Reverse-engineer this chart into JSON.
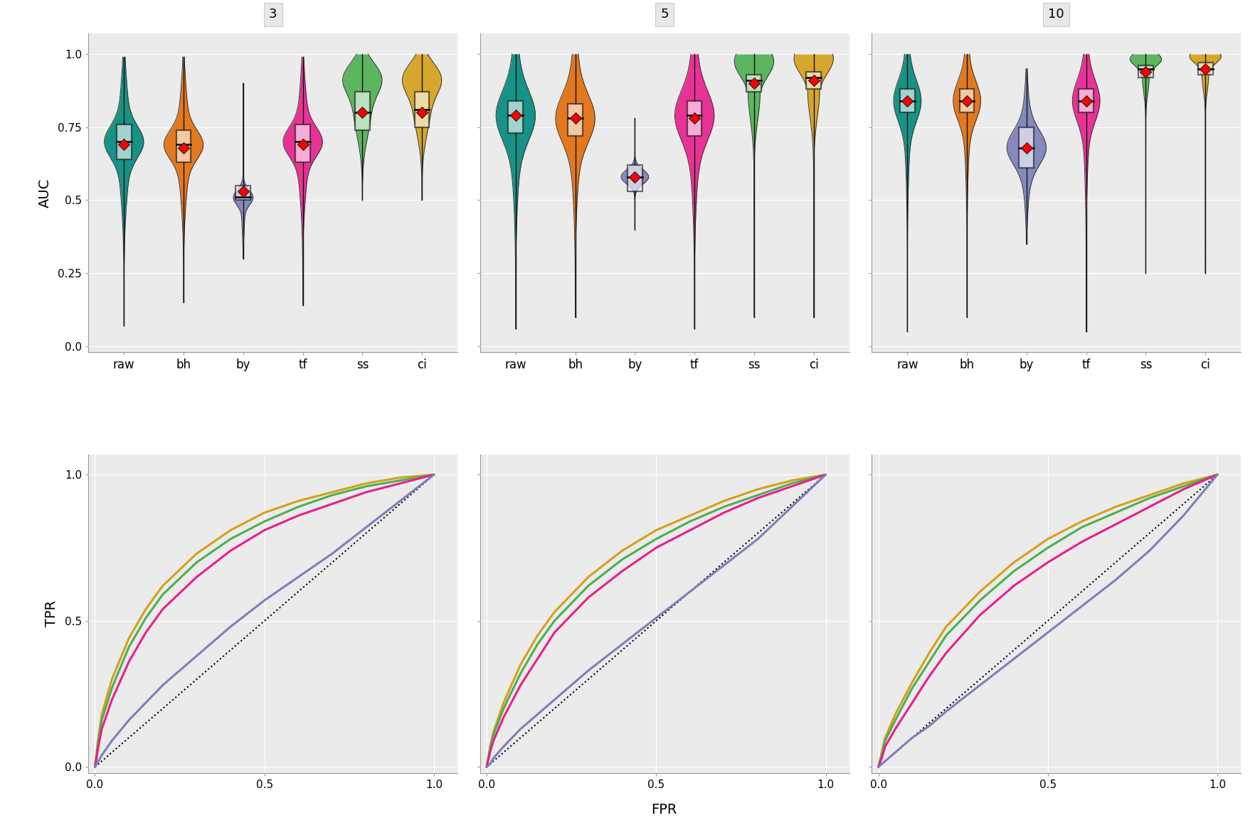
{
  "columns": [
    "3",
    "5",
    "10"
  ],
  "categories": [
    "raw",
    "bh",
    "by",
    "tf",
    "ss",
    "ci"
  ],
  "violin_colors": {
    "raw": "#00897B",
    "bh": "#E36C09",
    "by": "#7B7FBB",
    "tf": "#E91E8C",
    "ss": "#4CAF50",
    "ci": "#D4A017"
  },
  "violin_data": {
    "3": {
      "raw": {
        "mean": 0.69,
        "q1": 0.64,
        "q3": 0.76,
        "median": 0.7,
        "min": 0.07,
        "max": 0.99,
        "shape": "bimodal_narrow"
      },
      "bh": {
        "mean": 0.68,
        "q1": 0.63,
        "q3": 0.74,
        "median": 0.69,
        "min": 0.15,
        "max": 0.99,
        "shape": "bimodal_narrow"
      },
      "by": {
        "mean": 0.53,
        "q1": 0.5,
        "q3": 0.55,
        "median": 0.51,
        "min": 0.3,
        "max": 0.9,
        "shape": "narrow_low"
      },
      "tf": {
        "mean": 0.69,
        "q1": 0.63,
        "q3": 0.76,
        "median": 0.7,
        "min": 0.14,
        "max": 0.99,
        "shape": "bimodal_narrow"
      },
      "ss": {
        "mean": 0.8,
        "q1": 0.74,
        "q3": 0.87,
        "median": 0.8,
        "min": 0.5,
        "max": 1.0,
        "shape": "top_heavy"
      },
      "ci": {
        "mean": 0.8,
        "q1": 0.75,
        "q3": 0.87,
        "median": 0.81,
        "min": 0.5,
        "max": 1.0,
        "shape": "top_heavy"
      }
    },
    "5": {
      "raw": {
        "mean": 0.79,
        "q1": 0.73,
        "q3": 0.84,
        "median": 0.79,
        "min": 0.06,
        "max": 1.0,
        "shape": "diamond"
      },
      "bh": {
        "mean": 0.78,
        "q1": 0.72,
        "q3": 0.83,
        "median": 0.78,
        "min": 0.1,
        "max": 1.0,
        "shape": "diamond"
      },
      "by": {
        "mean": 0.58,
        "q1": 0.53,
        "q3": 0.62,
        "median": 0.58,
        "min": 0.4,
        "max": 0.78,
        "shape": "bell_low"
      },
      "tf": {
        "mean": 0.78,
        "q1": 0.72,
        "q3": 0.84,
        "median": 0.79,
        "min": 0.06,
        "max": 1.0,
        "shape": "diamond"
      },
      "ss": {
        "mean": 0.9,
        "q1": 0.87,
        "q3": 0.93,
        "median": 0.91,
        "min": 0.1,
        "max": 1.0,
        "shape": "top_flat"
      },
      "ci": {
        "mean": 0.91,
        "q1": 0.88,
        "q3": 0.94,
        "median": 0.92,
        "min": 0.1,
        "max": 1.0,
        "shape": "top_flat"
      }
    },
    "10": {
      "raw": {
        "mean": 0.84,
        "q1": 0.8,
        "q3": 0.88,
        "median": 0.84,
        "min": 0.05,
        "max": 1.0,
        "shape": "diamond_narrow"
      },
      "bh": {
        "mean": 0.84,
        "q1": 0.8,
        "q3": 0.88,
        "median": 0.84,
        "min": 0.1,
        "max": 1.0,
        "shape": "diamond_narrow"
      },
      "by": {
        "mean": 0.68,
        "q1": 0.61,
        "q3": 0.75,
        "median": 0.68,
        "min": 0.35,
        "max": 0.95,
        "shape": "elongated"
      },
      "tf": {
        "mean": 0.84,
        "q1": 0.8,
        "q3": 0.88,
        "median": 0.84,
        "min": 0.05,
        "max": 1.0,
        "shape": "diamond_narrow"
      },
      "ss": {
        "mean": 0.94,
        "q1": 0.92,
        "q3": 0.96,
        "median": 0.95,
        "min": 0.25,
        "max": 1.0,
        "shape": "top_flat_narrow"
      },
      "ci": {
        "mean": 0.95,
        "q1": 0.93,
        "q3": 0.97,
        "median": 0.95,
        "min": 0.25,
        "max": 1.0,
        "shape": "top_flat_narrow"
      }
    }
  },
  "roc_curves": {
    "3": {
      "yellow": {
        "fpr": [
          0,
          0.01,
          0.02,
          0.05,
          0.1,
          0.15,
          0.2,
          0.3,
          0.4,
          0.5,
          0.6,
          0.7,
          0.8,
          0.9,
          1.0
        ],
        "tpr": [
          0,
          0.1,
          0.18,
          0.3,
          0.44,
          0.54,
          0.62,
          0.73,
          0.81,
          0.87,
          0.91,
          0.94,
          0.97,
          0.99,
          1.0
        ]
      },
      "green": {
        "fpr": [
          0,
          0.01,
          0.02,
          0.05,
          0.1,
          0.15,
          0.2,
          0.3,
          0.4,
          0.5,
          0.6,
          0.7,
          0.8,
          0.9,
          1.0
        ],
        "tpr": [
          0,
          0.09,
          0.16,
          0.27,
          0.41,
          0.51,
          0.59,
          0.7,
          0.78,
          0.84,
          0.89,
          0.93,
          0.96,
          0.98,
          1.0
        ]
      },
      "magenta": {
        "fpr": [
          0,
          0.01,
          0.02,
          0.05,
          0.1,
          0.15,
          0.2,
          0.3,
          0.4,
          0.5,
          0.6,
          0.7,
          0.8,
          0.9,
          1.0
        ],
        "tpr": [
          0,
          0.07,
          0.13,
          0.23,
          0.36,
          0.46,
          0.54,
          0.65,
          0.74,
          0.81,
          0.86,
          0.9,
          0.94,
          0.97,
          1.0
        ]
      },
      "purple": {
        "fpr": [
          0,
          0.01,
          0.02,
          0.05,
          0.1,
          0.15,
          0.2,
          0.3,
          0.4,
          0.5,
          0.6,
          0.7,
          0.8,
          0.9,
          1.0
        ],
        "tpr": [
          0,
          0.02,
          0.04,
          0.09,
          0.16,
          0.22,
          0.28,
          0.38,
          0.48,
          0.57,
          0.65,
          0.73,
          0.82,
          0.91,
          1.0
        ]
      }
    },
    "5": {
      "yellow": {
        "fpr": [
          0,
          0.01,
          0.02,
          0.05,
          0.1,
          0.15,
          0.2,
          0.3,
          0.4,
          0.5,
          0.6,
          0.7,
          0.8,
          0.9,
          1.0
        ],
        "tpr": [
          0,
          0.07,
          0.12,
          0.22,
          0.35,
          0.45,
          0.53,
          0.65,
          0.74,
          0.81,
          0.86,
          0.91,
          0.95,
          0.98,
          1.0
        ]
      },
      "green": {
        "fpr": [
          0,
          0.01,
          0.02,
          0.05,
          0.1,
          0.15,
          0.2,
          0.3,
          0.4,
          0.5,
          0.6,
          0.7,
          0.8,
          0.9,
          1.0
        ],
        "tpr": [
          0,
          0.06,
          0.11,
          0.2,
          0.32,
          0.42,
          0.5,
          0.62,
          0.71,
          0.78,
          0.84,
          0.89,
          0.93,
          0.97,
          1.0
        ]
      },
      "magenta": {
        "fpr": [
          0,
          0.01,
          0.02,
          0.05,
          0.1,
          0.15,
          0.2,
          0.3,
          0.4,
          0.5,
          0.6,
          0.7,
          0.8,
          0.9,
          1.0
        ],
        "tpr": [
          0,
          0.05,
          0.09,
          0.17,
          0.28,
          0.37,
          0.46,
          0.58,
          0.67,
          0.75,
          0.81,
          0.87,
          0.92,
          0.96,
          1.0
        ]
      },
      "purple": {
        "fpr": [
          0,
          0.01,
          0.02,
          0.05,
          0.1,
          0.15,
          0.2,
          0.3,
          0.4,
          0.5,
          0.6,
          0.7,
          0.8,
          0.9,
          1.0
        ],
        "tpr": [
          0,
          0.01,
          0.03,
          0.07,
          0.13,
          0.18,
          0.23,
          0.33,
          0.42,
          0.51,
          0.6,
          0.69,
          0.78,
          0.89,
          1.0
        ]
      }
    },
    "10": {
      "yellow": {
        "fpr": [
          0,
          0.01,
          0.02,
          0.05,
          0.1,
          0.15,
          0.2,
          0.3,
          0.4,
          0.5,
          0.6,
          0.7,
          0.8,
          0.9,
          1.0
        ],
        "tpr": [
          0,
          0.05,
          0.1,
          0.18,
          0.29,
          0.39,
          0.48,
          0.6,
          0.7,
          0.78,
          0.84,
          0.89,
          0.93,
          0.97,
          1.0
        ]
      },
      "green": {
        "fpr": [
          0,
          0.01,
          0.02,
          0.05,
          0.1,
          0.15,
          0.2,
          0.3,
          0.4,
          0.5,
          0.6,
          0.7,
          0.8,
          0.9,
          1.0
        ],
        "tpr": [
          0,
          0.04,
          0.09,
          0.16,
          0.27,
          0.36,
          0.45,
          0.57,
          0.67,
          0.75,
          0.82,
          0.87,
          0.92,
          0.96,
          1.0
        ]
      },
      "magenta": {
        "fpr": [
          0,
          0.01,
          0.02,
          0.05,
          0.1,
          0.15,
          0.2,
          0.3,
          0.4,
          0.5,
          0.6,
          0.7,
          0.8,
          0.9,
          1.0
        ],
        "tpr": [
          0,
          0.03,
          0.07,
          0.13,
          0.22,
          0.31,
          0.39,
          0.52,
          0.62,
          0.7,
          0.77,
          0.83,
          0.89,
          0.95,
          1.0
        ]
      },
      "purple": {
        "fpr": [
          0,
          0.01,
          0.02,
          0.05,
          0.1,
          0.15,
          0.2,
          0.3,
          0.4,
          0.5,
          0.6,
          0.7,
          0.8,
          0.9,
          1.0
        ],
        "tpr": [
          0,
          0.01,
          0.02,
          0.05,
          0.1,
          0.14,
          0.19,
          0.28,
          0.37,
          0.46,
          0.55,
          0.64,
          0.74,
          0.86,
          1.0
        ]
      }
    }
  },
  "roc_colors": {
    "yellow": "#D4A017",
    "green": "#4CAF50",
    "magenta": "#E91E8C",
    "purple": "#7B7FBB"
  },
  "background_color": "#FFFFFF",
  "panel_background": "#EBEBEB",
  "grid_color": "#FFFFFF",
  "strip_color": "#E8E8E8",
  "ylim_auc": [
    -0.02,
    1.07
  ],
  "ylim_roc": [
    -0.02,
    1.07
  ],
  "xlim_roc": [
    -0.02,
    1.07
  ]
}
